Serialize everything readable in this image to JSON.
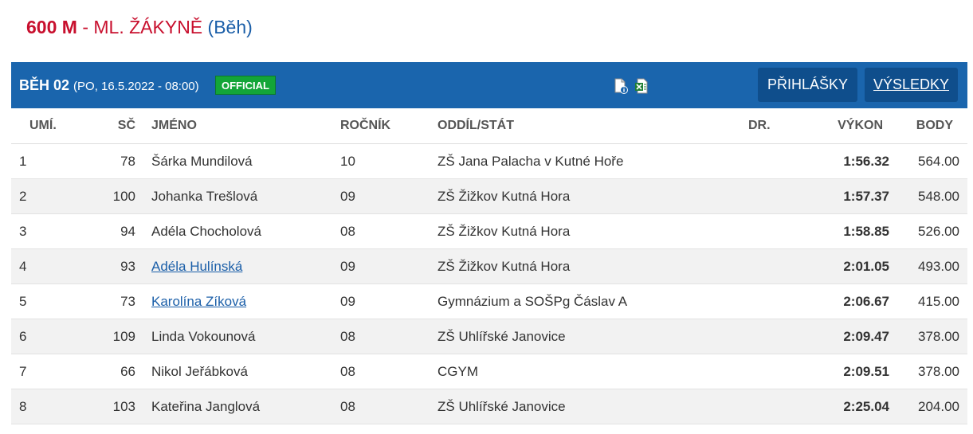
{
  "heading": {
    "event": "600 M",
    "separator": "-",
    "category": "ML. ŽÁKYNĚ",
    "discipline": "(Běh)"
  },
  "heat": {
    "title": "BĚH 02",
    "date": "(PO, 16.5.2022 - 08:00)",
    "status_badge": "OFFICIAL",
    "buttons": {
      "registrations": "PŘIHLÁŠKY",
      "results": "VÝSLEDKY"
    },
    "icons": [
      "document-info-icon",
      "excel-icon"
    ]
  },
  "table": {
    "columns": [
      "UMÍ.",
      "SČ",
      "JMÉNO",
      "ROČNÍK",
      "ODDÍL/STÁT",
      "DR.",
      "VÝKON",
      "BODY"
    ],
    "rows": [
      {
        "rank": "1",
        "bib": "78",
        "name": "Šárka Mundilová",
        "link": false,
        "year": "10",
        "club": "ZŠ Jana Palacha v Kutné Hoře",
        "dr": "",
        "performance": "1:56.32",
        "points": "564.00"
      },
      {
        "rank": "2",
        "bib": "100",
        "name": "Johanka Trešlová",
        "link": false,
        "year": "09",
        "club": "ZŠ Žižkov Kutná Hora",
        "dr": "",
        "performance": "1:57.37",
        "points": "548.00"
      },
      {
        "rank": "3",
        "bib": "94",
        "name": "Adéla Chocholová",
        "link": false,
        "year": "08",
        "club": "ZŠ Žižkov Kutná Hora",
        "dr": "",
        "performance": "1:58.85",
        "points": "526.00"
      },
      {
        "rank": "4",
        "bib": "93",
        "name": "Adéla Hulínská",
        "link": true,
        "year": "09",
        "club": "ZŠ Žižkov Kutná Hora",
        "dr": "",
        "performance": "2:01.05",
        "points": "493.00"
      },
      {
        "rank": "5",
        "bib": "73",
        "name": "Karolína Zíková",
        "link": true,
        "year": "09",
        "club": "Gymnázium a SOŠPg Čáslav A",
        "dr": "",
        "performance": "2:06.67",
        "points": "415.00"
      },
      {
        "rank": "6",
        "bib": "109",
        "name": "Linda Vokounová",
        "link": false,
        "year": "08",
        "club": "ZŠ Uhlířské Janovice",
        "dr": "",
        "performance": "2:09.47",
        "points": "378.00"
      },
      {
        "rank": "7",
        "bib": "66",
        "name": "Nikol Jeřábková",
        "link": false,
        "year": "08",
        "club": "CGYM",
        "dr": "",
        "performance": "2:09.51",
        "points": "378.00"
      },
      {
        "rank": "8",
        "bib": "103",
        "name": "Kateřina Janglová",
        "link": false,
        "year": "08",
        "club": "ZŠ Uhlířské Janovice",
        "dr": "",
        "performance": "2:25.04",
        "points": "204.00"
      }
    ]
  },
  "colors": {
    "header_bg": "#1a65ad",
    "button_bg": "#0f4e8c",
    "badge_green": "#13a538",
    "heading_red": "#c8102e",
    "link_blue": "#1a5ea8"
  }
}
